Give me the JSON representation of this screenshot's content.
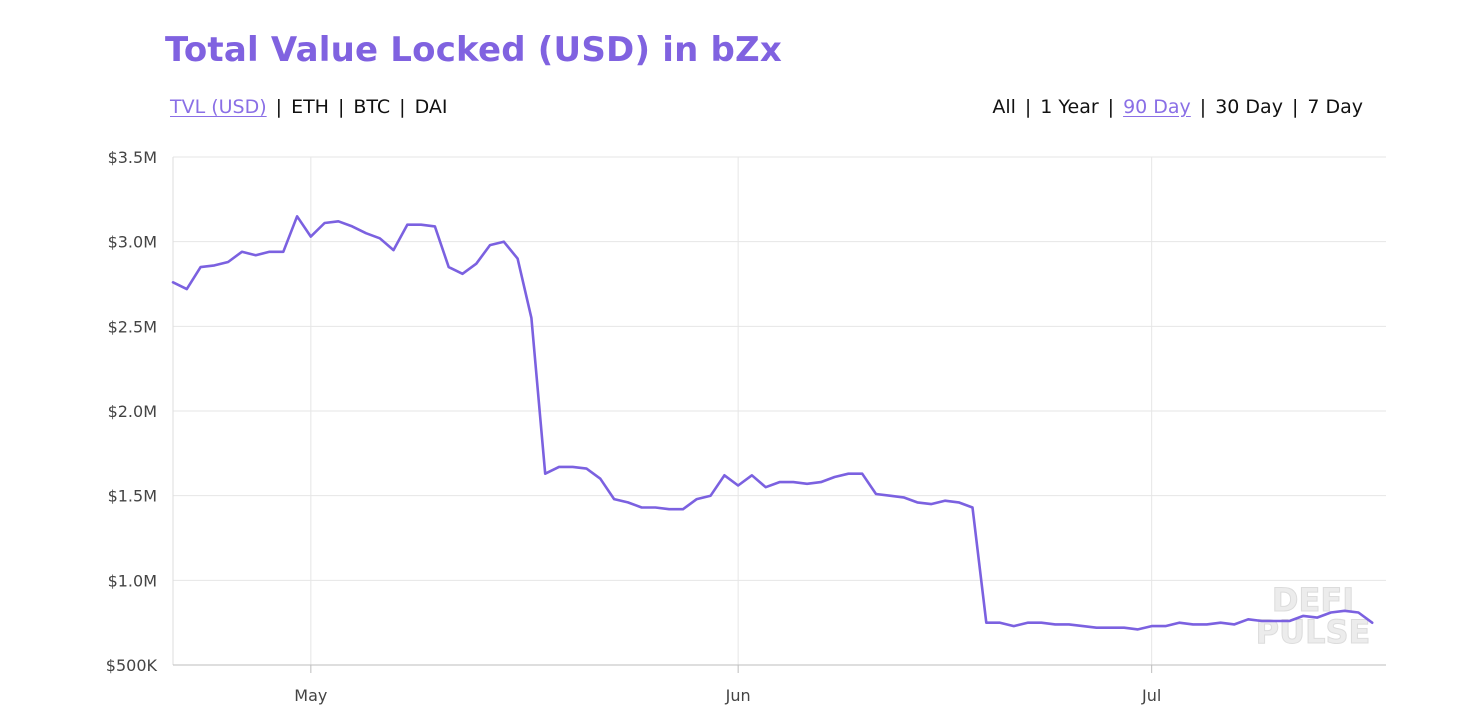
{
  "title": "Total Value Locked (USD) in bZx",
  "metric_tabs": [
    {
      "label": "TVL (USD)",
      "active": true
    },
    {
      "label": "ETH",
      "active": false
    },
    {
      "label": "BTC",
      "active": false
    },
    {
      "label": "DAI",
      "active": false
    }
  ],
  "range_tabs": [
    {
      "label": "All",
      "active": false
    },
    {
      "label": "1 Year",
      "active": false
    },
    {
      "label": "90 Day",
      "active": true
    },
    {
      "label": "30 Day",
      "active": false
    },
    {
      "label": "7 Day",
      "active": false
    }
  ],
  "separator": "|",
  "watermark": {
    "line1": "DEFI",
    "line2": "PULSE"
  },
  "colors": {
    "line": "#7b61e0",
    "accent": "#8062e0",
    "grid": "#e6e6e6"
  },
  "chart_data": {
    "type": "line",
    "title": "Total Value Locked (USD) in bZx",
    "xlabel": "",
    "ylabel": "",
    "x_ticks": [
      {
        "label": "May",
        "index": 10
      },
      {
        "label": "Jun",
        "index": 41
      },
      {
        "label": "Jul",
        "index": 71
      }
    ],
    "y_ticks": [
      {
        "label": "$500K",
        "value": 500000
      },
      {
        "label": "$1.0M",
        "value": 1000000
      },
      {
        "label": "$1.5M",
        "value": 1500000
      },
      {
        "label": "$2.0M",
        "value": 2000000
      },
      {
        "label": "$2.5M",
        "value": 2500000
      },
      {
        "label": "$3.0M",
        "value": 3000000
      },
      {
        "label": "$3.5M",
        "value": 3500000
      }
    ],
    "ylim": [
      500000,
      3500000
    ],
    "xlim": [
      0,
      88
    ],
    "grid": true,
    "legend": "none",
    "series": [
      {
        "values": [
          2760000,
          2720000,
          2850000,
          2860000,
          2880000,
          2940000,
          2920000,
          2940000,
          2940000,
          3150000,
          3030000,
          3110000,
          3120000,
          3090000,
          3050000,
          3020000,
          2950000,
          3100000,
          3100000,
          3090000,
          2850000,
          2810000,
          2870000,
          2980000,
          3000000,
          2900000,
          2550000,
          1630000,
          1670000,
          1670000,
          1660000,
          1600000,
          1480000,
          1460000,
          1430000,
          1430000,
          1420000,
          1420000,
          1480000,
          1500000,
          1620000,
          1560000,
          1620000,
          1550000,
          1580000,
          1580000,
          1570000,
          1580000,
          1610000,
          1630000,
          1630000,
          1510000,
          1500000,
          1490000,
          1460000,
          1450000,
          1470000,
          1460000,
          1430000,
          750000,
          750000,
          730000,
          750000,
          750000,
          740000,
          740000,
          730000,
          720000,
          720000,
          720000,
          710000,
          730000,
          730000,
          750000,
          740000,
          740000,
          750000,
          740000,
          770000,
          760000,
          760000,
          760000,
          790000,
          780000,
          810000,
          820000,
          810000,
          750000
        ]
      }
    ]
  }
}
